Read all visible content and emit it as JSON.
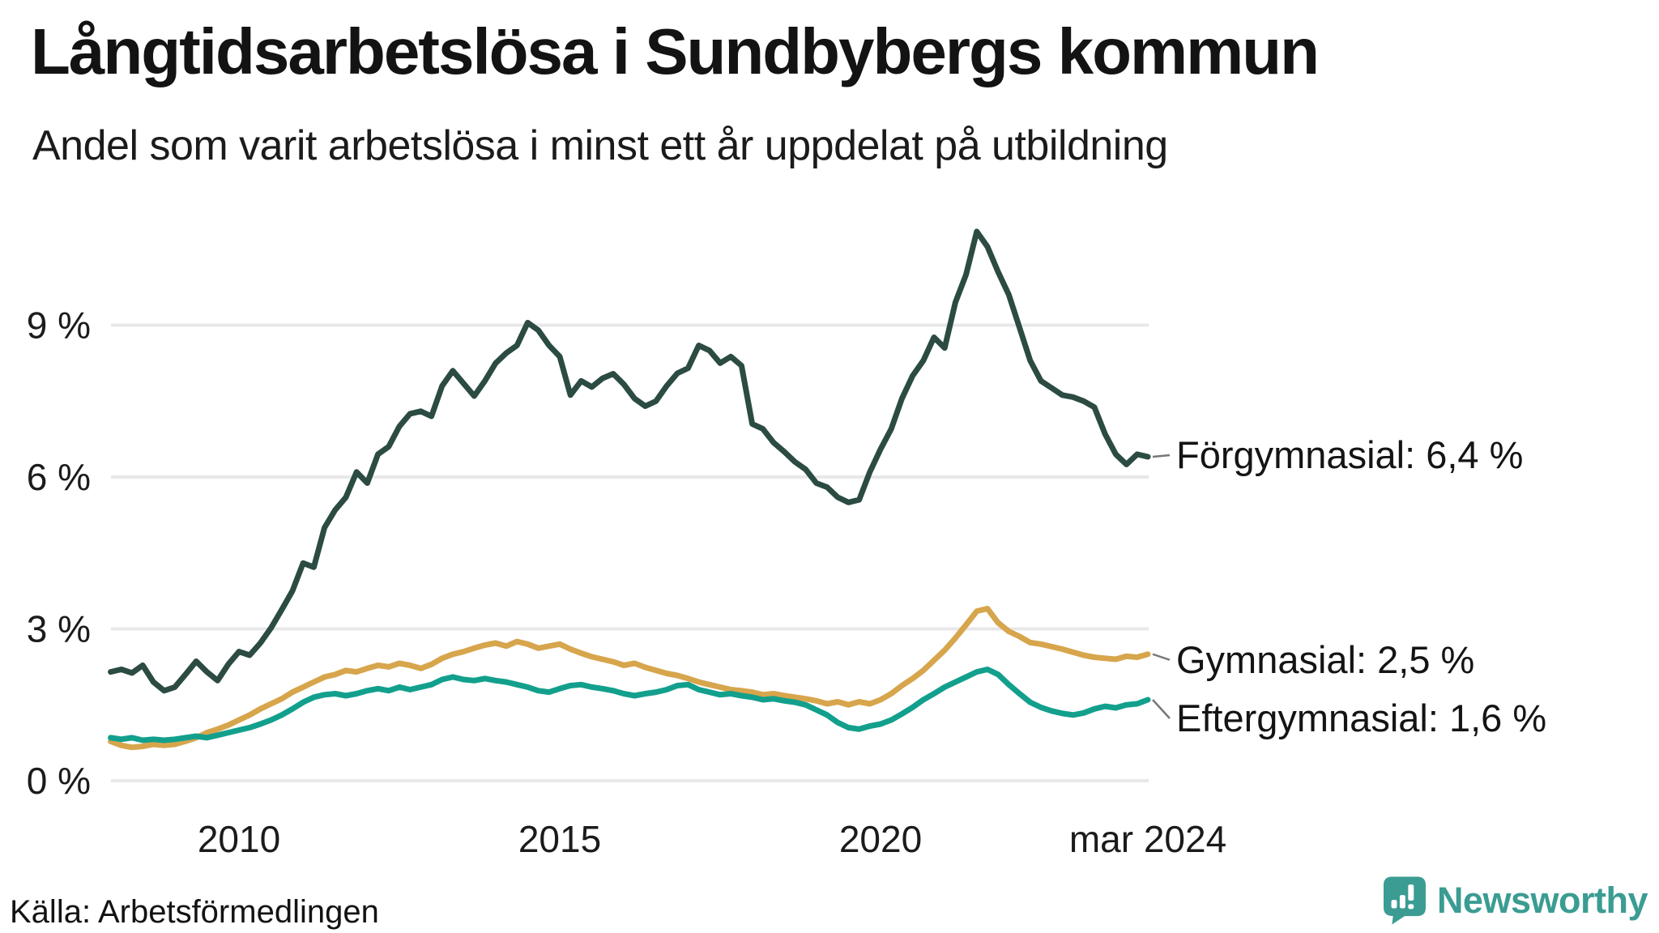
{
  "header": {
    "title": "Långtidsarbetslösa i Sundbybergs kommun",
    "subtitle": "Andel som varit arbetslösa i minst ett år uppdelat på utbildning"
  },
  "footer": {
    "source": "Källa: Arbetsförmedlingen",
    "brand": "Newsworthy"
  },
  "colors": {
    "text": "#131313",
    "grid": "#E8E8EA",
    "connector": "#777777",
    "brand_teal": "#3B9C93",
    "series_forgymnasial": "#2B4B43",
    "series_gymnasial": "#D7A54C",
    "series_eftergymnasial": "#12A08D"
  },
  "chart_data": {
    "type": "line",
    "title": "Långtidsarbetslösa i Sundbybergs kommun",
    "subtitle": "Andel som varit arbetslösa i minst ett år uppdelat på utbildning",
    "xlabel": "",
    "ylabel": "",
    "grid": "horizontal",
    "legend_position": "right-end-labels",
    "xlim": [
      2008.0,
      2024.21
    ],
    "ylim": [
      0,
      11.2
    ],
    "x_start": 2008.0,
    "x_step": 0.1666667,
    "x_ticks": [
      {
        "label": "2010",
        "year": 2010
      },
      {
        "label": "2015",
        "year": 2015
      },
      {
        "label": "2020",
        "year": 2020
      },
      {
        "label": "mar 2024",
        "year": 2024.1667
      }
    ],
    "y_ticks": [
      {
        "label": "0 %",
        "value": 0
      },
      {
        "label": "3 %",
        "value": 3
      },
      {
        "label": "6 %",
        "value": 6
      },
      {
        "label": "9 %",
        "value": 9
      }
    ],
    "series": [
      {
        "name": "Förgymnasial",
        "end_label": "Förgymnasial: 6,4 %",
        "end_value": 6.4,
        "color": "#2B4B43",
        "values": [
          2.15,
          2.2,
          2.13,
          2.28,
          1.95,
          1.78,
          1.85,
          2.1,
          2.36,
          2.15,
          1.98,
          2.3,
          2.55,
          2.48,
          2.72,
          3.02,
          3.38,
          3.75,
          4.3,
          4.22,
          5.0,
          5.35,
          5.6,
          6.1,
          5.88,
          6.45,
          6.6,
          7.0,
          7.25,
          7.3,
          7.2,
          7.8,
          8.1,
          7.85,
          7.6,
          7.9,
          8.25,
          8.45,
          8.6,
          9.05,
          8.9,
          8.6,
          8.38,
          7.62,
          7.9,
          7.78,
          7.95,
          8.04,
          7.83,
          7.55,
          7.4,
          7.5,
          7.8,
          8.05,
          8.15,
          8.6,
          8.5,
          8.25,
          8.38,
          8.2,
          7.05,
          6.95,
          6.68,
          6.5,
          6.3,
          6.15,
          5.88,
          5.8,
          5.6,
          5.5,
          5.55,
          6.1,
          6.55,
          6.95,
          7.55,
          8.0,
          8.3,
          8.76,
          8.55,
          9.45,
          10.0,
          10.85,
          10.55,
          10.05,
          9.6,
          8.95,
          8.3,
          7.9,
          7.76,
          7.62,
          7.58,
          7.5,
          7.38,
          6.85,
          6.45,
          6.25,
          6.45,
          6.4
        ]
      },
      {
        "name": "Gymnasial",
        "end_label": "Gymnasial: 2,5 %",
        "end_value": 2.5,
        "color": "#D7A54C",
        "values": [
          0.78,
          0.7,
          0.66,
          0.68,
          0.72,
          0.7,
          0.72,
          0.78,
          0.85,
          0.95,
          1.02,
          1.1,
          1.2,
          1.3,
          1.42,
          1.52,
          1.62,
          1.75,
          1.85,
          1.95,
          2.05,
          2.1,
          2.18,
          2.15,
          2.22,
          2.28,
          2.25,
          2.32,
          2.28,
          2.22,
          2.3,
          2.42,
          2.5,
          2.55,
          2.62,
          2.68,
          2.72,
          2.66,
          2.75,
          2.7,
          2.62,
          2.66,
          2.7,
          2.6,
          2.52,
          2.45,
          2.4,
          2.35,
          2.28,
          2.32,
          2.24,
          2.18,
          2.12,
          2.08,
          2.02,
          1.95,
          1.9,
          1.85,
          1.8,
          1.78,
          1.75,
          1.7,
          1.72,
          1.68,
          1.65,
          1.62,
          1.58,
          1.52,
          1.56,
          1.5,
          1.56,
          1.52,
          1.6,
          1.72,
          1.88,
          2.02,
          2.18,
          2.38,
          2.58,
          2.82,
          3.08,
          3.35,
          3.4,
          3.12,
          2.95,
          2.85,
          2.73,
          2.7,
          2.65,
          2.6,
          2.54,
          2.48,
          2.44,
          2.42,
          2.4,
          2.46,
          2.44,
          2.5
        ]
      },
      {
        "name": "Eftergymnasial",
        "end_label": "Eftergymnasial: 1,6 %",
        "end_value": 1.6,
        "color": "#12A08D",
        "values": [
          0.85,
          0.82,
          0.85,
          0.8,
          0.82,
          0.8,
          0.82,
          0.85,
          0.88,
          0.85,
          0.9,
          0.95,
          1.0,
          1.05,
          1.12,
          1.2,
          1.3,
          1.42,
          1.55,
          1.65,
          1.7,
          1.72,
          1.68,
          1.72,
          1.78,
          1.82,
          1.78,
          1.85,
          1.8,
          1.85,
          1.9,
          2.0,
          2.05,
          2.0,
          1.98,
          2.02,
          1.98,
          1.95,
          1.9,
          1.85,
          1.78,
          1.75,
          1.82,
          1.88,
          1.9,
          1.85,
          1.82,
          1.78,
          1.72,
          1.68,
          1.72,
          1.75,
          1.8,
          1.88,
          1.9,
          1.8,
          1.75,
          1.7,
          1.72,
          1.68,
          1.65,
          1.6,
          1.62,
          1.58,
          1.55,
          1.5,
          1.4,
          1.3,
          1.15,
          1.05,
          1.02,
          1.08,
          1.12,
          1.2,
          1.32,
          1.45,
          1.6,
          1.72,
          1.85,
          1.95,
          2.05,
          2.15,
          2.2,
          2.1,
          1.9,
          1.72,
          1.55,
          1.45,
          1.38,
          1.33,
          1.3,
          1.34,
          1.42,
          1.47,
          1.44,
          1.5,
          1.52,
          1.6
        ]
      }
    ]
  }
}
